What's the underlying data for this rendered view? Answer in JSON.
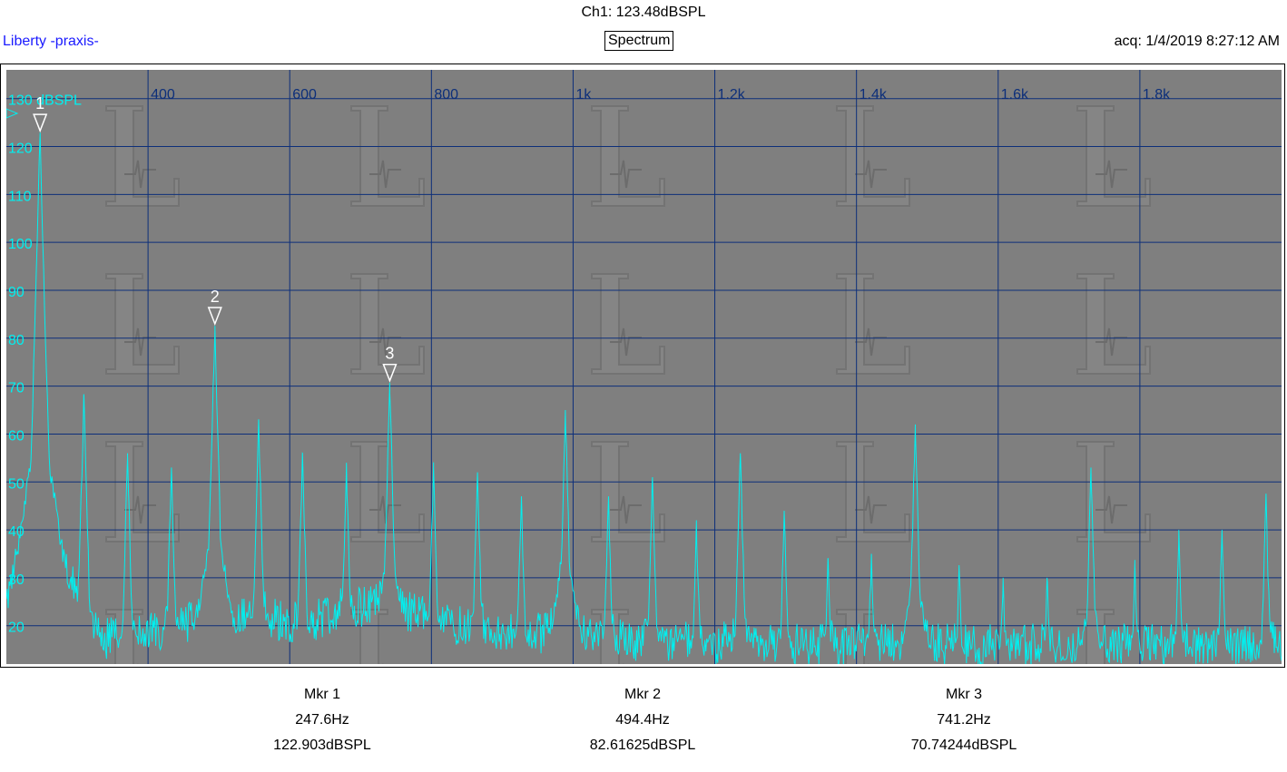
{
  "header": {
    "channel_readout": "Ch1: 123.48dBSPL",
    "app_name": "Liberty -praxis-",
    "view_title": "Spectrum",
    "acquisition": "acq: 1/4/2019 8:27:12 AM"
  },
  "chart_data": {
    "type": "line",
    "title": "Spectrum",
    "x_unit": "Hz",
    "y_unit": "dBSPL",
    "xlim": [
      200,
      2000
    ],
    "ylim": [
      12,
      136
    ],
    "x_ticks": [
      400,
      600,
      800,
      1000,
      1200,
      1400,
      1600,
      1800
    ],
    "x_tick_labels": [
      "400",
      "600",
      "800",
      "1k",
      "1.2k",
      "1.4k",
      "1.6k",
      "1.8k"
    ],
    "y_ticks": [
      20,
      30,
      40,
      50,
      60,
      70,
      80,
      90,
      100,
      110,
      120,
      130
    ],
    "y_tick_labels": [
      "20",
      "30",
      "40",
      "50",
      "60",
      "70",
      "80",
      "90",
      "100",
      "110",
      "120",
      "130 dBSPL"
    ],
    "grid": true,
    "colors": {
      "background": "#7f7f7f",
      "grid": "#0d2f7a",
      "trace": "#00f0f0",
      "axis_text": "#00f0f0",
      "x_tick_text": "#0d2f7a",
      "marker": "#ffffff"
    },
    "series": [
      {
        "noise_floor": [
          [
            200,
            24
          ],
          [
            230,
            40
          ],
          [
            260,
            40
          ],
          [
            300,
            26
          ],
          [
            320,
            18
          ],
          [
            360,
            17
          ],
          [
            400,
            18
          ],
          [
            450,
            21
          ],
          [
            500,
            20
          ],
          [
            560,
            22
          ],
          [
            620,
            20
          ],
          [
            680,
            24
          ],
          [
            740,
            24
          ],
          [
            800,
            21
          ],
          [
            860,
            20
          ],
          [
            920,
            19
          ],
          [
            980,
            18
          ],
          [
            1000,
            18
          ],
          [
            1100,
            17
          ],
          [
            1200,
            16.5
          ],
          [
            1300,
            16
          ],
          [
            1400,
            16
          ],
          [
            1500,
            16
          ],
          [
            1600,
            16
          ],
          [
            1700,
            16
          ],
          [
            1800,
            16
          ],
          [
            1900,
            16
          ],
          [
            2000,
            16
          ]
        ],
        "peaks": [
          [
            247.6,
            122.9,
            70
          ],
          [
            309.5,
            68,
            32
          ],
          [
            371,
            56,
            26
          ],
          [
            433,
            53,
            24
          ],
          [
            494.4,
            82.6,
            48
          ],
          [
            556,
            63,
            30
          ],
          [
            618,
            56,
            26
          ],
          [
            680,
            54,
            24
          ],
          [
            741.2,
            70.7,
            40
          ],
          [
            803,
            53,
            26
          ],
          [
            865,
            52,
            22
          ],
          [
            927,
            47,
            22
          ],
          [
            989,
            65,
            40
          ],
          [
            1050,
            47,
            22
          ],
          [
            1112,
            51,
            24
          ],
          [
            1174,
            42,
            20
          ],
          [
            1236,
            56,
            26
          ],
          [
            1298,
            44,
            20
          ],
          [
            1360,
            34,
            18
          ],
          [
            1421,
            35,
            18
          ],
          [
            1483,
            62,
            34
          ],
          [
            1545,
            32,
            16
          ],
          [
            1607,
            30,
            16
          ],
          [
            1669,
            30,
            16
          ],
          [
            1731,
            53,
            28
          ],
          [
            1793,
            33,
            18
          ],
          [
            1855,
            40,
            20
          ],
          [
            1916,
            40,
            20
          ],
          [
            1978,
            47,
            22
          ]
        ]
      }
    ],
    "markers": [
      {
        "label": "1",
        "frequency": 247.6,
        "level": 122.903
      },
      {
        "label": "2",
        "frequency": 494.4,
        "level": 82.61625
      },
      {
        "label": "3",
        "frequency": 741.2,
        "level": 70.74244
      }
    ]
  },
  "marker_table": [
    {
      "title": "Mkr 1",
      "freq": "247.6Hz",
      "level": "122.903dBSPL"
    },
    {
      "title": "Mkr 2",
      "freq": "494.4Hz",
      "level": "82.61625dBSPL"
    },
    {
      "title": "Mkr 3",
      "freq": "741.2Hz",
      "level": "70.74244dBSPL"
    }
  ]
}
